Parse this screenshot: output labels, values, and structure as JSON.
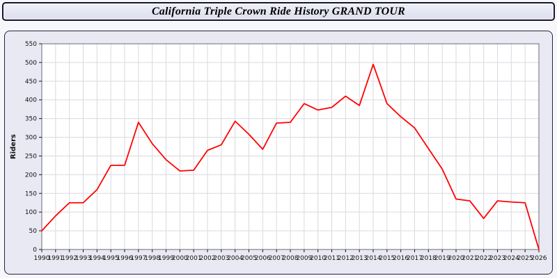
{
  "header": {
    "title": "California Triple Crown Ride History GRAND TOUR"
  },
  "colors": {
    "line": "#ff0000",
    "panel_bg": "#e9e9f3",
    "plot_bg": "#ffffff",
    "grid": "#d9d9e0",
    "plot_border": "#6a6a7a",
    "axis_text": "#111111"
  },
  "chart_data": {
    "type": "line",
    "title": "California Triple Crown Ride History GRAND TOUR",
    "xlabel": "",
    "ylabel": "Riders",
    "ylim": [
      0,
      550
    ],
    "ytick_step": 50,
    "grid": true,
    "legend": "none",
    "x": [
      1990,
      1991,
      1992,
      1993,
      1994,
      1995,
      1996,
      1997,
      1998,
      1999,
      2000,
      2001,
      2002,
      2003,
      2004,
      2005,
      2006,
      2007,
      2008,
      2009,
      2010,
      2011,
      2012,
      2013,
      2014,
      2015,
      2016,
      2017,
      2018,
      2019,
      2020,
      2021,
      2022,
      2023,
      2024,
      2025,
      2026
    ],
    "series": [
      {
        "name": "Riders",
        "color": "#ff0000",
        "values": [
          50,
          90,
          125,
          125,
          160,
          225,
          225,
          340,
          283,
          240,
          210,
          212,
          265,
          280,
          343,
          308,
          268,
          338,
          340,
          390,
          373,
          380,
          410,
          385,
          495,
          390,
          355,
          325,
          270,
          215,
          135,
          130,
          83,
          130,
          127,
          125,
          0
        ]
      }
    ]
  }
}
